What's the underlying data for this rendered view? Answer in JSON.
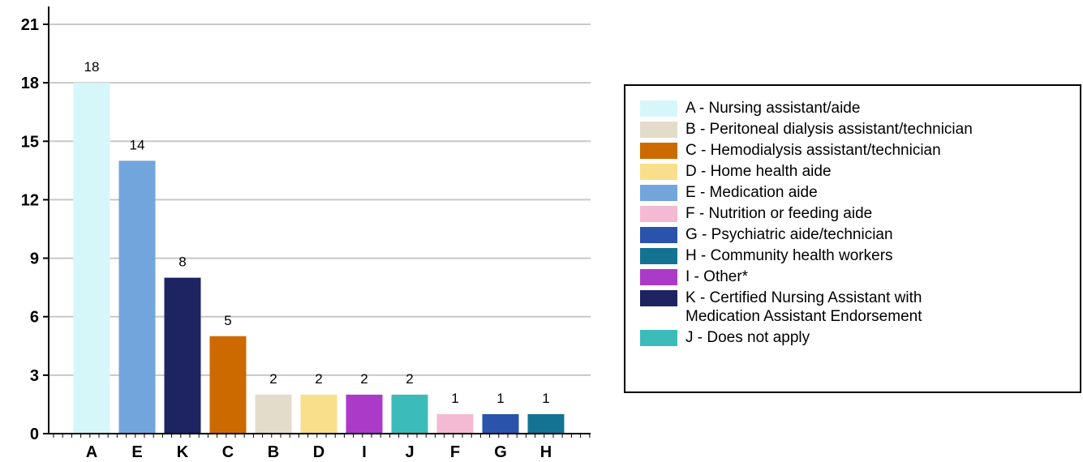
{
  "chart_data": {
    "type": "bar",
    "categories": [
      "A",
      "E",
      "K",
      "C",
      "B",
      "D",
      "I",
      "J",
      "F",
      "G",
      "H"
    ],
    "values": [
      18,
      14,
      8,
      5,
      2,
      2,
      2,
      2,
      1,
      1,
      1
    ],
    "colors": [
      "#d6f7fa",
      "#72a5db",
      "#1e2361",
      "#cc6a00",
      "#e4dccb",
      "#f9de8c",
      "#ab3ac8",
      "#3bbcba",
      "#f4bad3",
      "#2a53ab",
      "#147393"
    ],
    "ylim": [
      0,
      21
    ],
    "yticks": [
      "0",
      "3",
      "6",
      "9",
      "12",
      "15",
      "18",
      "21"
    ],
    "grid": true,
    "legend_position": "right",
    "legend": [
      {
        "label": "A - Nursing assistant/aide",
        "color": "#d6f7fa"
      },
      {
        "label": "B - Peritoneal dialysis assistant/technician",
        "color": "#e4dccb"
      },
      {
        "label": "C - Hemodialysis assistant/technician",
        "color": "#cc6a00"
      },
      {
        "label": "D - Home health aide",
        "color": "#f9de8c"
      },
      {
        "label": "E - Medication aide",
        "color": "#72a5db"
      },
      {
        "label": "F - Nutrition or feeding aide",
        "color": "#f4bad3"
      },
      {
        "label": "G - Psychiatric aide/technician",
        "color": "#2a53ab"
      },
      {
        "label": "H - Community health workers",
        "color": "#147393"
      },
      {
        "label": "I - Other*",
        "color": "#ab3ac8"
      },
      {
        "label": "K - Certified Nursing Assistant with\nMedication Assistant Endorsement",
        "color": "#1e2361"
      },
      {
        "label": "J - Does not apply",
        "color": "#3bbcba"
      }
    ]
  }
}
